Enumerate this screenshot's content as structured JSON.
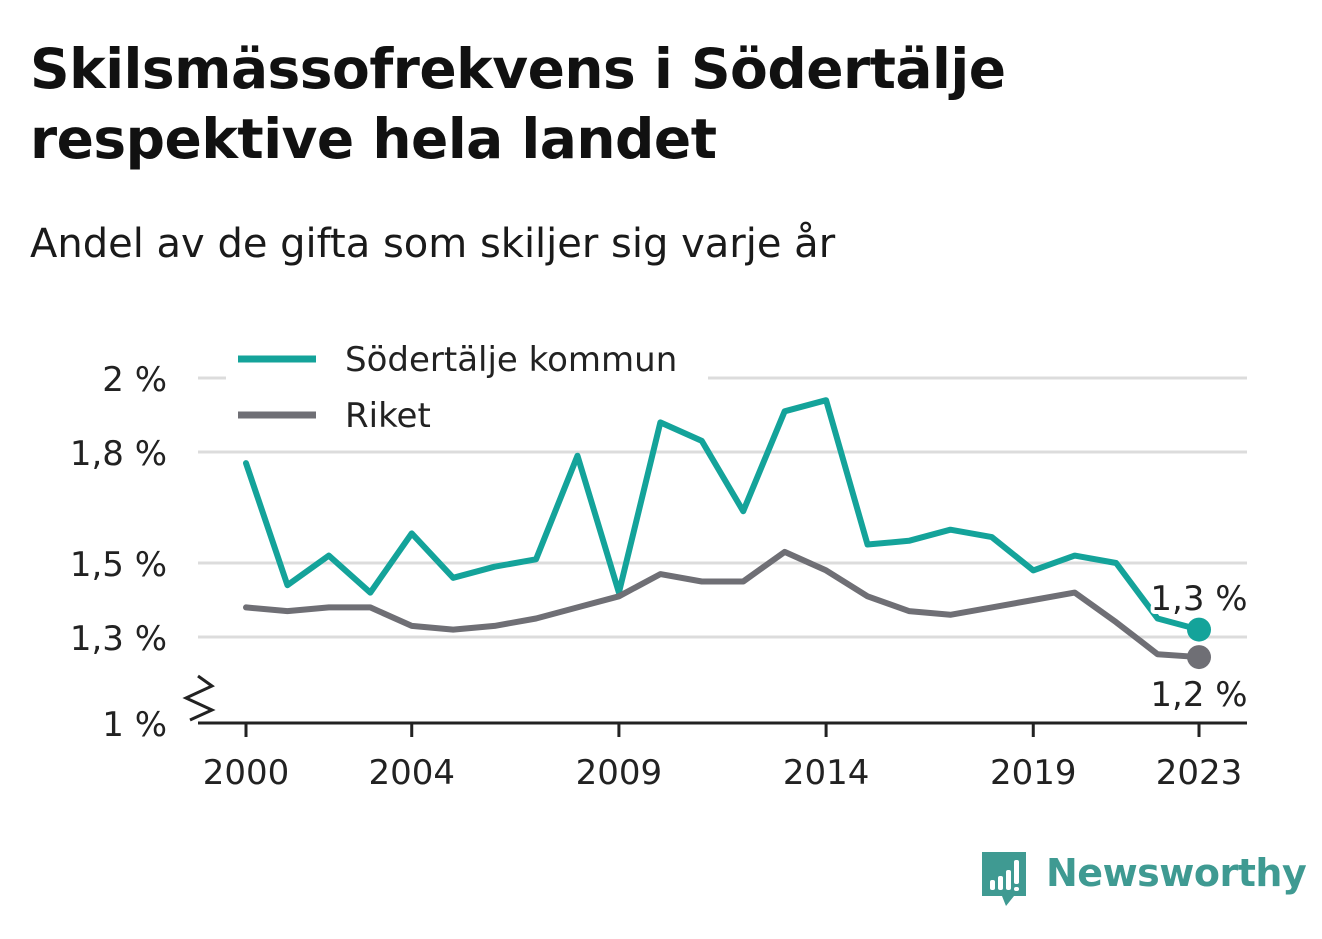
{
  "chart_data": {
    "type": "line",
    "title": "Skilsmässofrekvens i Södertälje respektive hela landet",
    "subtitle": "Andel av de gifta som skiljer sig varje år",
    "x": [
      2000,
      2001,
      2002,
      2003,
      2004,
      2005,
      2006,
      2007,
      2008,
      2009,
      2010,
      2011,
      2012,
      2013,
      2014,
      2015,
      2016,
      2017,
      2018,
      2019,
      2020,
      2021,
      2022,
      2023
    ],
    "x_ticks": [
      2000,
      2004,
      2009,
      2014,
      2019,
      2023
    ],
    "x_tick_labels": [
      "2000",
      "2004",
      "2009",
      "2014",
      "2019",
      "2023"
    ],
    "y_ticks": [
      1.0,
      1.3,
      1.5,
      1.8,
      2.0
    ],
    "y_tick_labels": [
      "1 %",
      "1,3 %",
      "1,5 %",
      "1,8 %",
      "2 %"
    ],
    "y_axis_break": true,
    "grid": true,
    "legend_position": "top-left",
    "series": [
      {
        "name": "Södertälje kommun",
        "color": "#14a39a",
        "values": [
          1.77,
          1.44,
          1.52,
          1.42,
          1.58,
          1.46,
          1.49,
          1.51,
          1.79,
          1.42,
          1.88,
          1.83,
          1.64,
          1.91,
          1.94,
          1.55,
          1.56,
          1.59,
          1.57,
          1.48,
          1.52,
          1.5,
          1.35,
          1.32
        ],
        "end_label": "1,3 %"
      },
      {
        "name": "Riket",
        "color": "#6f6f75",
        "values": [
          1.38,
          1.37,
          1.38,
          1.38,
          1.33,
          1.32,
          1.33,
          1.35,
          1.38,
          1.41,
          1.47,
          1.45,
          1.45,
          1.53,
          1.48,
          1.41,
          1.37,
          1.36,
          1.38,
          1.4,
          1.42,
          1.34,
          1.24,
          1.23
        ],
        "end_label": "1,2 %"
      }
    ]
  },
  "brand": {
    "name": "Newsworthy",
    "color": "#3f9a92",
    "icon": "newsworthy-logo-icon"
  }
}
